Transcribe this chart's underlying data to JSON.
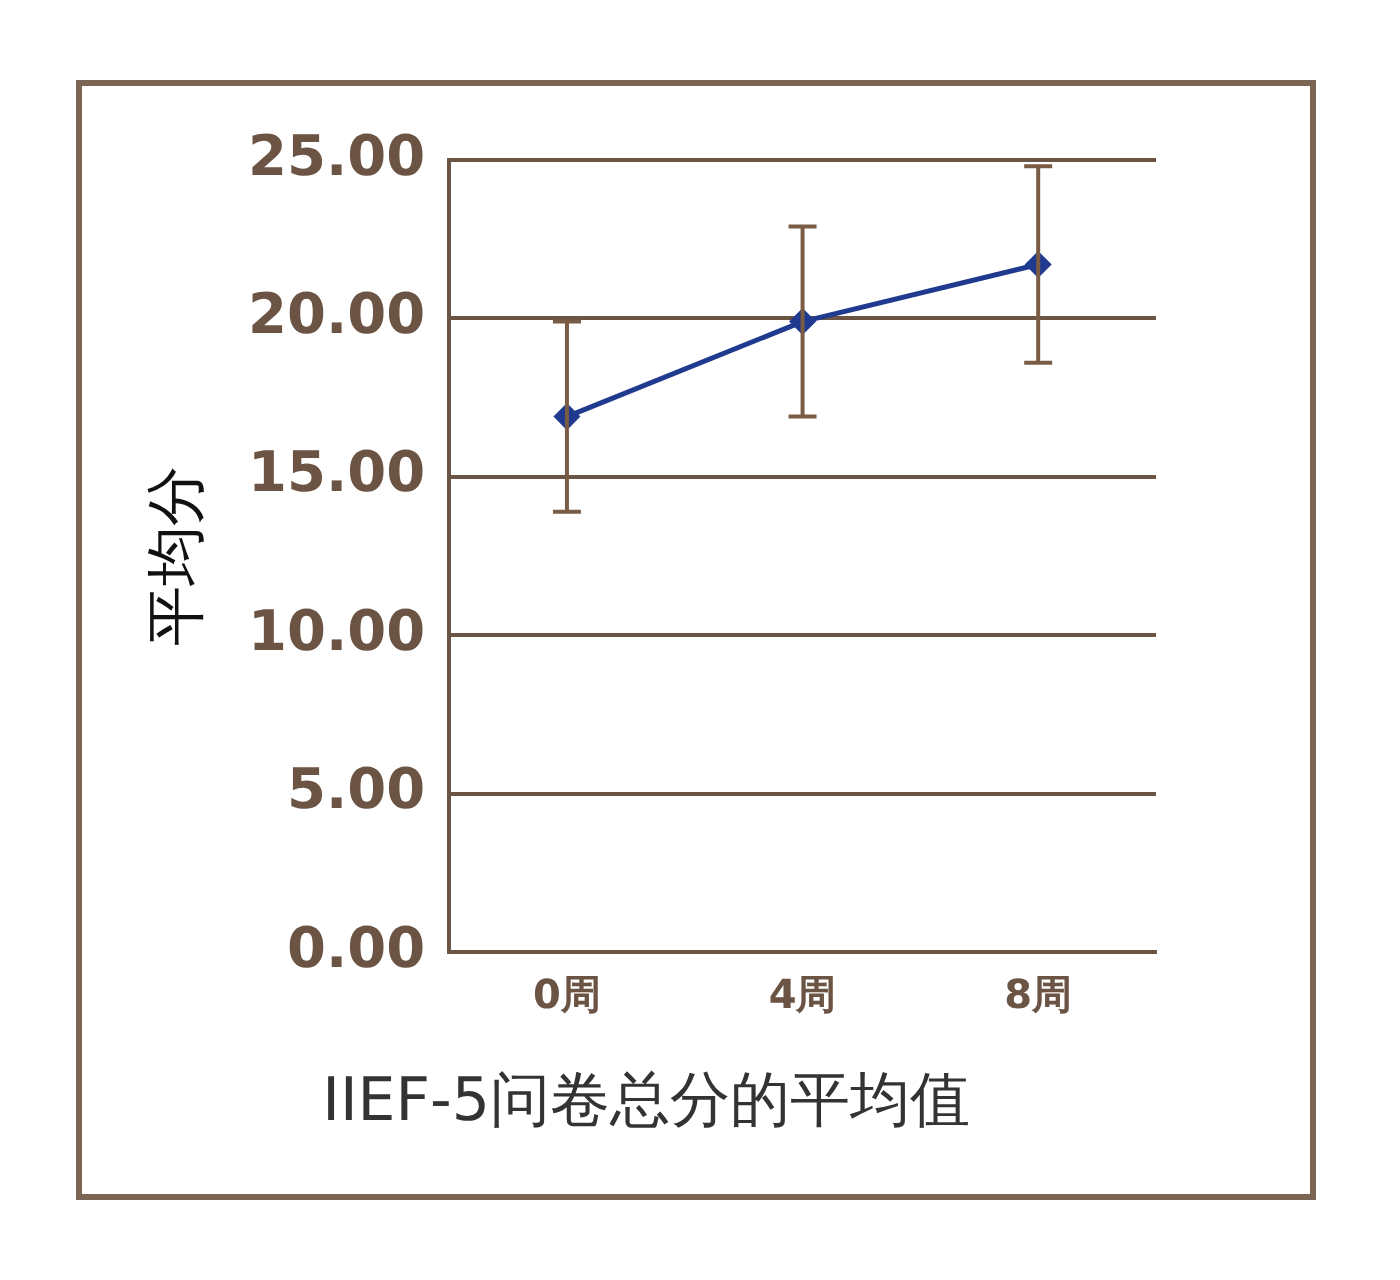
{
  "chart_data": {
    "type": "line",
    "title": "IIEF-5问卷总分的平均值",
    "ylabel": "平均分",
    "categories": [
      "0周",
      "4周",
      "8周"
    ],
    "series": [
      {
        "color": "#1f3a8f",
        "values": [
          16.9,
          19.9,
          21.7
        ],
        "errors": [
          3,
          3,
          3.1
        ]
      }
    ],
    "ylim": [
      0,
      25
    ],
    "yticks": [
      {
        "value": 0,
        "label": "0.00"
      },
      {
        "value": 5,
        "label": "5.00"
      },
      {
        "value": 10,
        "label": "10.00"
      },
      {
        "value": 15,
        "label": "15.00"
      },
      {
        "value": 20,
        "label": "20.00"
      },
      {
        "value": 25,
        "label": "25.00"
      }
    ],
    "grid": "y",
    "legend": false,
    "marker": "diamond",
    "line_style": "solid"
  }
}
